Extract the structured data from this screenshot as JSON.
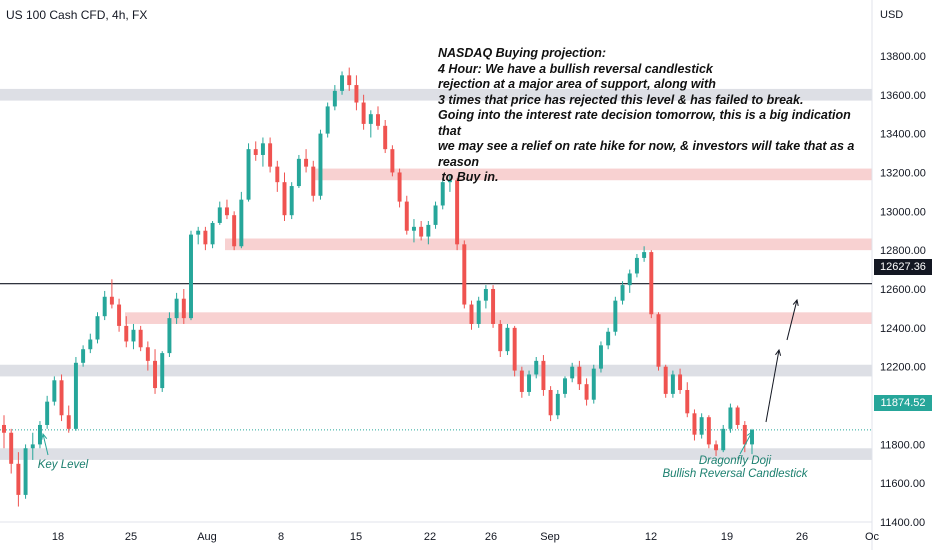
{
  "header": {
    "title": "US 100 Cash CFD, 4h, FX"
  },
  "chart_data": {
    "type": "candlestick",
    "currency_label": "USD",
    "ylim": [
      11300,
      13950
    ],
    "y_ticks": [
      "11400.00",
      "11600.00",
      "11800.00",
      "12000.00",
      "12200.00",
      "12400.00",
      "12600.00",
      "12800.00",
      "13000.00",
      "13200.00",
      "13400.00",
      "13600.00",
      "13800.00"
    ],
    "x_ticks": [
      "18",
      "25",
      "Aug",
      "8",
      "15",
      "22",
      "26",
      "Sep",
      "12",
      "19",
      "26",
      "Oc"
    ],
    "current_price": "11874.52",
    "crosshair_price": "12627.36",
    "support_zones_grey": [
      [
        13570,
        13630
      ],
      [
        12150,
        12210
      ],
      [
        11720,
        11780
      ]
    ],
    "resistance_zones_red": [
      [
        13160,
        13220
      ],
      [
        12800,
        12860
      ],
      [
        12420,
        12480
      ]
    ],
    "annotations": {
      "note_title": "NASDAQ Buying projection:",
      "note_body": "4 Hour: We have a bullish reversal candlestick\nrejection at a major area of support, along with\n3 times that price has rejected this level & has failed to break.\nGoing into the interest rate decision tomorrow, this is a big indication that\nwe may see a relief on rate hike for now, & investors will take that as a reason\n to Buy in.",
      "key_level": "Key Level",
      "doji_line1": "Dragonfly Doji",
      "doji_line2": "Bullish Reversal Candlestick"
    },
    "candles": [
      [
        11900,
        11950,
        11780,
        11860
      ],
      [
        11860,
        11880,
        11650,
        11700
      ],
      [
        11700,
        11760,
        11480,
        11540
      ],
      [
        11540,
        11800,
        11520,
        11780
      ],
      [
        11780,
        11860,
        11720,
        11800
      ],
      [
        11800,
        11920,
        11780,
        11900
      ],
      [
        11900,
        12050,
        11880,
        12020
      ],
      [
        12020,
        12150,
        12000,
        12130
      ],
      [
        12130,
        12160,
        11920,
        11950
      ],
      [
        11950,
        12000,
        11860,
        11880
      ],
      [
        11880,
        12250,
        11870,
        12220
      ],
      [
        12220,
        12310,
        12200,
        12290
      ],
      [
        12290,
        12370,
        12270,
        12340
      ],
      [
        12340,
        12480,
        12320,
        12460
      ],
      [
        12460,
        12590,
        12440,
        12560
      ],
      [
        12560,
        12650,
        12500,
        12520
      ],
      [
        12520,
        12550,
        12380,
        12410
      ],
      [
        12410,
        12460,
        12300,
        12330
      ],
      [
        12330,
        12420,
        12290,
        12390
      ],
      [
        12390,
        12410,
        12280,
        12300
      ],
      [
        12300,
        12330,
        12180,
        12230
      ],
      [
        12230,
        12290,
        12060,
        12090
      ],
      [
        12090,
        12280,
        12070,
        12270
      ],
      [
        12270,
        12480,
        12250,
        12450
      ],
      [
        12450,
        12580,
        12420,
        12550
      ],
      [
        12550,
        12600,
        12420,
        12450
      ],
      [
        12450,
        12900,
        12440,
        12880
      ],
      [
        12880,
        12920,
        12830,
        12900
      ],
      [
        12900,
        12920,
        12800,
        12830
      ],
      [
        12830,
        12950,
        12810,
        12940
      ],
      [
        12940,
        13050,
        12930,
        13020
      ],
      [
        13020,
        13060,
        12960,
        12980
      ],
      [
        12980,
        13000,
        12800,
        12820
      ],
      [
        12820,
        13100,
        12810,
        13060
      ],
      [
        13060,
        13350,
        13050,
        13320
      ],
      [
        13320,
        13360,
        13260,
        13290
      ],
      [
        13290,
        13380,
        13230,
        13350
      ],
      [
        13350,
        13380,
        13200,
        13230
      ],
      [
        13230,
        13260,
        13100,
        13150
      ],
      [
        13150,
        13200,
        12950,
        12980
      ],
      [
        12980,
        13150,
        12960,
        13130
      ],
      [
        13130,
        13290,
        13120,
        13270
      ],
      [
        13270,
        13320,
        13200,
        13230
      ],
      [
        13230,
        13260,
        13050,
        13080
      ],
      [
        13080,
        13420,
        13060,
        13400
      ],
      [
        13400,
        13560,
        13380,
        13540
      ],
      [
        13540,
        13650,
        13520,
        13620
      ],
      [
        13620,
        13720,
        13600,
        13700
      ],
      [
        13700,
        13740,
        13620,
        13650
      ],
      [
        13650,
        13700,
        13520,
        13560
      ],
      [
        13560,
        13600,
        13420,
        13450
      ],
      [
        13450,
        13520,
        13380,
        13500
      ],
      [
        13500,
        13540,
        13420,
        13440
      ],
      [
        13440,
        13470,
        13300,
        13320
      ],
      [
        13320,
        13340,
        13180,
        13200
      ],
      [
        13200,
        13220,
        13020,
        13050
      ],
      [
        13050,
        13080,
        12880,
        12900
      ],
      [
        12900,
        12960,
        12840,
        12920
      ],
      [
        12920,
        12950,
        12850,
        12870
      ],
      [
        12870,
        12950,
        12830,
        12930
      ],
      [
        12930,
        13050,
        12910,
        13030
      ],
      [
        13030,
        13170,
        13010,
        13150
      ],
      [
        13150,
        13190,
        13100,
        13160
      ],
      [
        13160,
        13170,
        12800,
        12830
      ],
      [
        12830,
        12850,
        12500,
        12520
      ],
      [
        12520,
        12540,
        12390,
        12420
      ],
      [
        12420,
        12560,
        12400,
        12540
      ],
      [
        12540,
        12620,
        12500,
        12600
      ],
      [
        12600,
        12620,
        12400,
        12420
      ],
      [
        12420,
        12440,
        12250,
        12280
      ],
      [
        12280,
        12420,
        12260,
        12400
      ],
      [
        12400,
        12410,
        12150,
        12180
      ],
      [
        12180,
        12200,
        12040,
        12070
      ],
      [
        12070,
        12180,
        12050,
        12160
      ],
      [
        12160,
        12250,
        12140,
        12230
      ],
      [
        12230,
        12260,
        12050,
        12080
      ],
      [
        12080,
        12100,
        11920,
        11950
      ],
      [
        11950,
        12080,
        11930,
        12060
      ],
      [
        12060,
        12150,
        12040,
        12140
      ],
      [
        12140,
        12220,
        12120,
        12200
      ],
      [
        12200,
        12230,
        12080,
        12110
      ],
      [
        12110,
        12140,
        12000,
        12030
      ],
      [
        12030,
        12210,
        12010,
        12190
      ],
      [
        12190,
        12330,
        12170,
        12310
      ],
      [
        12310,
        12400,
        12290,
        12380
      ],
      [
        12380,
        12560,
        12360,
        12540
      ],
      [
        12540,
        12640,
        12520,
        12620
      ],
      [
        12620,
        12700,
        12580,
        12680
      ],
      [
        12680,
        12780,
        12660,
        12760
      ],
      [
        12760,
        12820,
        12740,
        12790
      ],
      [
        12790,
        12800,
        12450,
        12470
      ],
      [
        12470,
        12480,
        12180,
        12200
      ],
      [
        12200,
        12210,
        12040,
        12060
      ],
      [
        12060,
        12180,
        12040,
        12160
      ],
      [
        12160,
        12190,
        12060,
        12080
      ],
      [
        12080,
        12120,
        11940,
        11960
      ],
      [
        11960,
        11980,
        11820,
        11850
      ],
      [
        11850,
        11960,
        11830,
        11940
      ],
      [
        11940,
        11950,
        11780,
        11800
      ],
      [
        11800,
        11820,
        11740,
        11770
      ],
      [
        11770,
        11900,
        11760,
        11880
      ],
      [
        11880,
        12010,
        11860,
        11990
      ],
      [
        11990,
        12000,
        11880,
        11900
      ],
      [
        11900,
        11920,
        11760,
        11800
      ],
      [
        11800,
        11880,
        11750,
        11874
      ]
    ]
  }
}
